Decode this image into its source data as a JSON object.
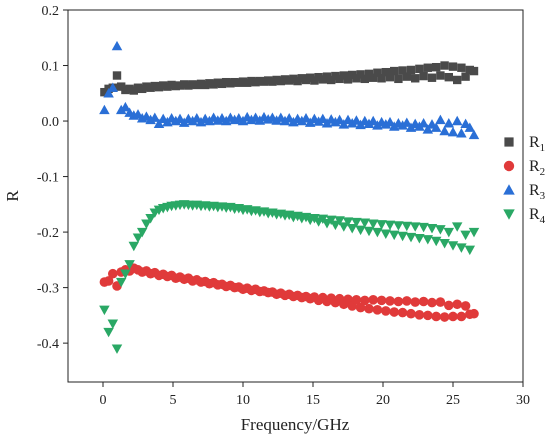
{
  "chart_data": {
    "type": "scatter",
    "xlabel": "Frequency/GHz",
    "ylabel": "R",
    "xlim": [
      -2.5,
      30
    ],
    "ylim": [
      -0.47,
      0.2
    ],
    "xticks": [
      0,
      5,
      10,
      15,
      20,
      25,
      30
    ],
    "yticks": [
      0.2,
      0.1,
      0.0,
      -0.1,
      -0.2,
      -0.3,
      -0.4
    ],
    "xtick_labels": [
      "0",
      "5",
      "10",
      "15",
      "20",
      "25",
      "30"
    ],
    "ytick_labels": [
      "0.2",
      "0.1",
      "0.0",
      "-0.1",
      "-0.2",
      "-0.3",
      "-0.4"
    ],
    "grid": false,
    "legend_position": "right",
    "series": [
      {
        "name": "R",
        "subscript": "1",
        "marker": "square",
        "color": "#4a4a4a",
        "x": [
          0.1,
          0.4,
          0.7,
          1.0,
          1.3,
          1.6,
          1.9,
          2.2,
          2.5,
          2.8,
          3.1,
          3.4,
          3.7,
          4.0,
          4.3,
          4.6,
          4.9,
          5.2,
          5.5,
          5.8,
          6.1,
          6.4,
          6.7,
          7.0,
          7.3,
          7.6,
          7.9,
          8.2,
          8.5,
          8.8,
          9.1,
          9.4,
          9.7,
          10.0,
          10.3,
          10.6,
          10.9,
          11.2,
          11.5,
          11.8,
          12.1,
          12.4,
          12.7,
          13.0,
          13.3,
          13.6,
          13.9,
          14.2,
          14.5,
          14.8,
          15.1,
          15.4,
          15.7,
          16.0,
          16.3,
          16.6,
          16.9,
          17.2,
          17.5,
          17.8,
          18.1,
          18.4,
          18.7,
          19.0,
          19.3,
          19.6,
          19.9,
          20.2,
          20.5,
          20.8,
          21.1,
          21.4,
          21.7,
          22.0,
          22.3,
          22.6,
          22.9,
          23.2,
          23.5,
          23.8,
          24.1,
          24.4,
          24.7,
          25.0,
          25.3,
          25.6,
          25.9,
          26.2,
          26.5
        ],
        "y": [
          0.052,
          0.058,
          0.06,
          0.082,
          0.062,
          0.056,
          0.058,
          0.055,
          0.06,
          0.058,
          0.062,
          0.06,
          0.063,
          0.061,
          0.064,
          0.062,
          0.065,
          0.063,
          0.064,
          0.066,
          0.064,
          0.066,
          0.065,
          0.067,
          0.065,
          0.068,
          0.066,
          0.069,
          0.067,
          0.07,
          0.068,
          0.07,
          0.069,
          0.071,
          0.069,
          0.072,
          0.07,
          0.072,
          0.071,
          0.073,
          0.071,
          0.074,
          0.072,
          0.075,
          0.073,
          0.076,
          0.072,
          0.077,
          0.074,
          0.078,
          0.073,
          0.079,
          0.075,
          0.08,
          0.074,
          0.081,
          0.076,
          0.082,
          0.075,
          0.083,
          0.077,
          0.084,
          0.076,
          0.085,
          0.078,
          0.087,
          0.077,
          0.088,
          0.079,
          0.09,
          0.076,
          0.091,
          0.08,
          0.092,
          0.077,
          0.094,
          0.081,
          0.096,
          0.078,
          0.097,
          0.082,
          0.1,
          0.079,
          0.098,
          0.074,
          0.096,
          0.08,
          0.092,
          0.09
        ]
      },
      {
        "name": "R",
        "subscript": "2",
        "marker": "circle",
        "color": "#e03a3a",
        "x": [
          0.1,
          0.4,
          0.7,
          1.0,
          1.3,
          1.6,
          1.9,
          2.2,
          2.5,
          2.8,
          3.1,
          3.4,
          3.7,
          4.0,
          4.3,
          4.6,
          4.9,
          5.2,
          5.5,
          5.8,
          6.1,
          6.4,
          6.7,
          7.0,
          7.3,
          7.6,
          7.9,
          8.2,
          8.5,
          8.8,
          9.1,
          9.4,
          9.7,
          10.0,
          10.3,
          10.6,
          10.9,
          11.2,
          11.5,
          11.8,
          12.1,
          12.4,
          12.7,
          13.0,
          13.3,
          13.6,
          13.9,
          14.2,
          14.5,
          14.8,
          15.1,
          15.4,
          15.7,
          16.0,
          16.3,
          16.6,
          16.9,
          17.2,
          17.5,
          17.8,
          18.1,
          18.4,
          18.7,
          19.0,
          19.3,
          19.6,
          19.9,
          20.2,
          20.5,
          20.8,
          21.1,
          21.4,
          21.7,
          22.0,
          22.3,
          22.6,
          22.9,
          23.2,
          23.5,
          23.8,
          24.1,
          24.4,
          24.7,
          25.0,
          25.3,
          25.6,
          25.9,
          26.2,
          26.5
        ],
        "y": [
          -0.29,
          -0.288,
          -0.275,
          -0.297,
          -0.272,
          -0.268,
          -0.27,
          -0.265,
          -0.268,
          -0.272,
          -0.27,
          -0.275,
          -0.273,
          -0.278,
          -0.276,
          -0.28,
          -0.278,
          -0.283,
          -0.281,
          -0.285,
          -0.283,
          -0.288,
          -0.286,
          -0.29,
          -0.289,
          -0.293,
          -0.291,
          -0.295,
          -0.294,
          -0.298,
          -0.296,
          -0.3,
          -0.299,
          -0.303,
          -0.301,
          -0.305,
          -0.303,
          -0.307,
          -0.306,
          -0.309,
          -0.308,
          -0.312,
          -0.31,
          -0.314,
          -0.312,
          -0.316,
          -0.314,
          -0.318,
          -0.316,
          -0.32,
          -0.317,
          -0.323,
          -0.318,
          -0.325,
          -0.319,
          -0.327,
          -0.32,
          -0.33,
          -0.321,
          -0.333,
          -0.322,
          -0.336,
          -0.323,
          -0.338,
          -0.322,
          -0.34,
          -0.323,
          -0.342,
          -0.324,
          -0.344,
          -0.325,
          -0.345,
          -0.324,
          -0.347,
          -0.326,
          -0.349,
          -0.325,
          -0.35,
          -0.327,
          -0.352,
          -0.326,
          -0.353,
          -0.332,
          -0.352,
          -0.33,
          -0.352,
          -0.333,
          -0.348,
          -0.347
        ]
      },
      {
        "name": "R",
        "subscript": "3",
        "marker": "triangle-up",
        "color": "#2a6fd6",
        "x": [
          0.1,
          0.4,
          0.7,
          1.0,
          1.3,
          1.6,
          1.9,
          2.2,
          2.5,
          2.8,
          3.1,
          3.4,
          3.7,
          4.0,
          4.3,
          4.6,
          4.9,
          5.2,
          5.5,
          5.8,
          6.1,
          6.4,
          6.7,
          7.0,
          7.3,
          7.6,
          7.9,
          8.2,
          8.5,
          8.8,
          9.1,
          9.4,
          9.7,
          10.0,
          10.3,
          10.6,
          10.9,
          11.2,
          11.5,
          11.8,
          12.1,
          12.4,
          12.7,
          13.0,
          13.3,
          13.6,
          13.9,
          14.2,
          14.5,
          14.8,
          15.1,
          15.4,
          15.7,
          16.0,
          16.3,
          16.6,
          16.9,
          17.2,
          17.5,
          17.8,
          18.1,
          18.4,
          18.7,
          19.0,
          19.3,
          19.6,
          19.9,
          20.2,
          20.5,
          20.8,
          21.1,
          21.4,
          21.7,
          22.0,
          22.3,
          22.6,
          22.9,
          23.2,
          23.5,
          23.8,
          24.1,
          24.4,
          24.7,
          25.0,
          25.3,
          25.6,
          25.9,
          26.2,
          26.5
        ],
        "y": [
          0.02,
          0.05,
          0.06,
          0.135,
          0.02,
          0.025,
          0.015,
          0.01,
          0.012,
          0.005,
          0.008,
          0.002,
          0.006,
          -0.005,
          0.004,
          -0.002,
          0.005,
          0.0,
          0.004,
          -0.003,
          0.004,
          0.0,
          0.005,
          -0.002,
          0.004,
          0.0,
          0.006,
          0.001,
          0.005,
          0.0,
          0.006,
          0.002,
          0.005,
          0.0,
          0.007,
          0.002,
          0.006,
          0.001,
          0.007,
          0.003,
          0.006,
          0.001,
          0.006,
          0.0,
          0.005,
          -0.002,
          0.004,
          0.0,
          0.005,
          -0.003,
          0.004,
          -0.001,
          0.004,
          -0.004,
          0.003,
          -0.002,
          0.002,
          -0.006,
          0.002,
          -0.004,
          0.001,
          -0.007,
          0.0,
          -0.005,
          0.0,
          -0.008,
          -0.002,
          -0.006,
          -0.002,
          -0.01,
          -0.004,
          -0.008,
          -0.003,
          -0.012,
          -0.005,
          -0.01,
          -0.004,
          -0.015,
          -0.006,
          -0.012,
          0.002,
          -0.018,
          -0.004,
          -0.02,
          0.0,
          -0.022,
          -0.005,
          -0.012,
          -0.025
        ]
      },
      {
        "name": "R",
        "subscript": "4",
        "marker": "triangle-down",
        "color": "#2aa865",
        "x": [
          0.1,
          0.4,
          0.7,
          1.0,
          1.3,
          1.6,
          1.9,
          2.2,
          2.5,
          2.8,
          3.1,
          3.4,
          3.7,
          4.0,
          4.3,
          4.6,
          4.9,
          5.2,
          5.5,
          5.8,
          6.1,
          6.4,
          6.7,
          7.0,
          7.3,
          7.6,
          7.9,
          8.2,
          8.5,
          8.8,
          9.1,
          9.4,
          9.7,
          10.0,
          10.3,
          10.6,
          10.9,
          11.2,
          11.5,
          11.8,
          12.1,
          12.4,
          12.7,
          13.0,
          13.3,
          13.6,
          13.9,
          14.2,
          14.5,
          14.8,
          15.1,
          15.4,
          15.7,
          16.0,
          16.3,
          16.6,
          16.9,
          17.2,
          17.5,
          17.8,
          18.1,
          18.4,
          18.7,
          19.0,
          19.3,
          19.6,
          19.9,
          20.2,
          20.5,
          20.8,
          21.1,
          21.4,
          21.7,
          22.0,
          22.3,
          22.6,
          22.9,
          23.2,
          23.5,
          23.8,
          24.1,
          24.4,
          24.7,
          25.0,
          25.3,
          25.6,
          25.9,
          26.2,
          26.5
        ],
        "y": [
          -0.34,
          -0.38,
          -0.365,
          -0.41,
          -0.29,
          -0.275,
          -0.258,
          -0.225,
          -0.21,
          -0.2,
          -0.185,
          -0.175,
          -0.165,
          -0.16,
          -0.157,
          -0.155,
          -0.153,
          -0.152,
          -0.151,
          -0.15,
          -0.151,
          -0.152,
          -0.151,
          -0.153,
          -0.152,
          -0.154,
          -0.153,
          -0.155,
          -0.154,
          -0.156,
          -0.155,
          -0.158,
          -0.157,
          -0.16,
          -0.159,
          -0.162,
          -0.161,
          -0.164,
          -0.163,
          -0.166,
          -0.165,
          -0.168,
          -0.167,
          -0.17,
          -0.169,
          -0.173,
          -0.171,
          -0.175,
          -0.173,
          -0.178,
          -0.175,
          -0.181,
          -0.176,
          -0.184,
          -0.178,
          -0.187,
          -0.179,
          -0.19,
          -0.181,
          -0.193,
          -0.182,
          -0.196,
          -0.183,
          -0.198,
          -0.185,
          -0.2,
          -0.186,
          -0.203,
          -0.187,
          -0.205,
          -0.188,
          -0.207,
          -0.189,
          -0.209,
          -0.19,
          -0.211,
          -0.191,
          -0.213,
          -0.193,
          -0.216,
          -0.195,
          -0.22,
          -0.2,
          -0.224,
          -0.19,
          -0.228,
          -0.205,
          -0.232,
          -0.2
        ]
      }
    ]
  }
}
